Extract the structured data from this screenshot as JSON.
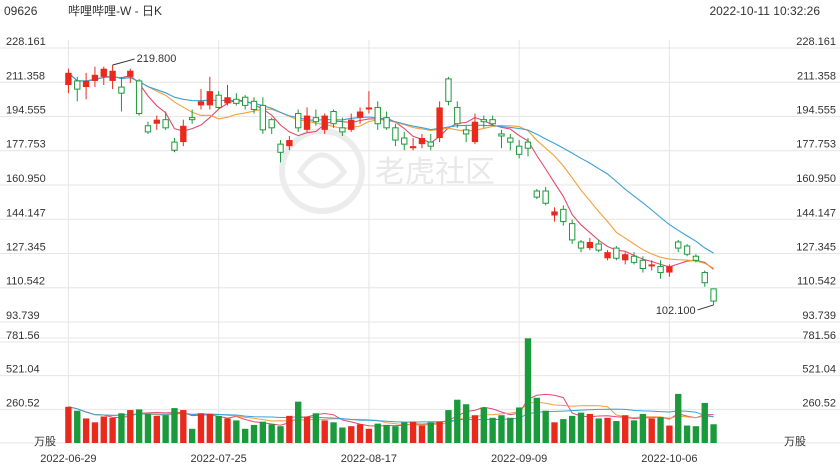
{
  "header": {
    "code": "09626",
    "name": "哔哩哔哩-W - 日K",
    "datetime": "2022-10-11 10:32:26"
  },
  "watermark": "老虎社区",
  "colors": {
    "up": "#e8291c",
    "down": "#1a9a3a",
    "ma5": "#e24a6e",
    "ma10": "#f2a03a",
    "ma20": "#3aa0d8",
    "grid": "#e6e6e6"
  },
  "chart_data": {
    "type": "candlestick",
    "price_axis": {
      "ticks": [
        "228.161",
        "211.358",
        "194.555",
        "177.753",
        "160.950",
        "144.147",
        "127.345",
        "110.542",
        "93.739"
      ],
      "range": [
        93.739,
        228.161
      ]
    },
    "volume_axis": {
      "ticks": [
        "781.56",
        "521.04",
        "260.52"
      ],
      "unit": "万股",
      "range": [
        0,
        781.56
      ]
    },
    "x_labels": [
      {
        "label": "2022-06-29",
        "index": 0
      },
      {
        "label": "2022-07-25",
        "index": 17
      },
      {
        "label": "2022-08-17",
        "index": 34
      },
      {
        "label": "2022-09-09",
        "index": 51
      },
      {
        "label": "2022-10-06",
        "index": 68
      }
    ],
    "annotations": [
      {
        "text": "219.800",
        "index": 5,
        "value": 219.8,
        "side": "high"
      },
      {
        "text": "102.100",
        "index": 73,
        "value": 102.1,
        "side": "low"
      }
    ],
    "ohlc": [
      [
        210,
        218,
        206,
        216
      ],
      [
        212,
        214,
        202,
        208
      ],
      [
        209,
        216,
        203,
        212
      ],
      [
        212,
        219,
        209,
        215
      ],
      [
        214,
        219,
        210,
        218
      ],
      [
        212,
        219.8,
        208,
        217
      ],
      [
        209,
        214,
        197,
        206
      ],
      [
        214,
        218,
        211,
        217
      ],
      [
        212,
        213,
        195,
        196
      ],
      [
        190,
        192,
        186,
        187
      ],
      [
        191,
        195,
        188,
        193
      ],
      [
        193,
        197,
        188,
        189
      ],
      [
        182,
        184,
        177,
        178
      ],
      [
        182,
        193,
        180,
        190
      ],
      [
        194,
        198,
        191,
        193
      ],
      [
        200,
        208,
        198,
        202
      ],
      [
        200,
        214,
        198,
        207
      ],
      [
        205,
        207,
        198,
        199
      ],
      [
        201,
        210,
        200,
        204
      ],
      [
        203,
        206,
        200,
        201
      ],
      [
        204,
        205,
        198,
        200
      ],
      [
        202,
        204,
        196,
        198
      ],
      [
        200,
        204,
        186,
        188
      ],
      [
        193,
        194,
        186,
        189
      ],
      [
        181,
        183,
        172,
        177
      ],
      [
        180,
        185,
        178,
        183
      ],
      [
        196,
        198,
        187,
        189
      ],
      [
        188,
        199,
        187,
        195
      ],
      [
        194,
        198,
        190,
        192
      ],
      [
        188,
        196,
        186,
        195
      ],
      [
        197,
        198,
        189,
        191
      ],
      [
        189,
        194,
        185,
        187
      ],
      [
        188,
        196,
        187,
        193
      ],
      [
        194,
        199,
        191,
        197
      ],
      [
        198,
        207,
        196,
        199
      ],
      [
        199,
        202,
        188,
        191
      ],
      [
        194,
        197,
        188,
        189
      ],
      [
        189,
        191,
        180,
        183
      ],
      [
        184,
        187,
        178,
        181
      ],
      [
        179,
        184,
        178,
        180
      ],
      [
        181,
        186,
        179,
        184
      ],
      [
        182,
        186,
        178,
        180
      ],
      [
        184,
        202,
        182,
        199
      ],
      [
        213,
        214,
        200,
        202
      ],
      [
        199,
        202,
        189,
        191
      ],
      [
        188,
        190,
        182,
        186
      ],
      [
        182,
        196,
        181,
        192
      ],
      [
        193,
        195,
        189,
        192
      ],
      [
        193,
        195,
        190,
        191
      ],
      [
        186,
        188,
        179,
        185
      ],
      [
        184,
        186,
        178,
        182
      ],
      [
        180,
        183,
        174,
        176
      ],
      [
        182,
        184,
        175,
        179
      ],
      [
        158,
        159,
        154,
        155
      ],
      [
        158,
        160,
        151,
        152
      ],
      [
        146,
        150,
        143,
        148
      ],
      [
        149,
        151,
        141,
        143
      ],
      [
        142,
        144,
        132,
        134
      ],
      [
        133,
        134,
        128,
        130
      ],
      [
        130,
        135,
        129,
        133
      ],
      [
        132,
        134,
        128,
        129
      ],
      [
        125,
        129,
        124,
        128
      ],
      [
        130,
        131,
        124,
        125
      ],
      [
        124,
        128,
        122,
        127
      ],
      [
        126,
        128,
        122,
        123
      ],
      [
        124,
        126,
        118,
        120
      ],
      [
        121,
        124,
        119,
        122
      ],
      [
        121,
        124,
        115,
        118
      ],
      [
        118,
        122,
        116,
        121
      ],
      [
        133,
        134,
        128,
        130
      ],
      [
        131,
        132,
        126,
        127
      ],
      [
        126,
        127,
        123,
        124
      ],
      [
        118,
        119,
        111,
        113
      ],
      [
        110,
        110,
        102.1,
        104
      ]
    ],
    "volume": [
      280,
      250,
      190,
      160,
      205,
      195,
      230,
      255,
      260,
      225,
      210,
      215,
      270,
      255,
      110,
      230,
      225,
      210,
      190,
      175,
      110,
      140,
      165,
      145,
      130,
      210,
      320,
      205,
      230,
      175,
      160,
      120,
      130,
      145,
      110,
      150,
      140,
      130,
      160,
      165,
      135,
      160,
      165,
      255,
      335,
      300,
      215,
      275,
      195,
      215,
      195,
      275,
      810,
      350,
      250,
      160,
      185,
      210,
      235,
      225,
      190,
      195,
      170,
      215,
      175,
      225,
      190,
      200,
      135,
      380,
      135,
      130,
      310,
      145
    ]
  }
}
